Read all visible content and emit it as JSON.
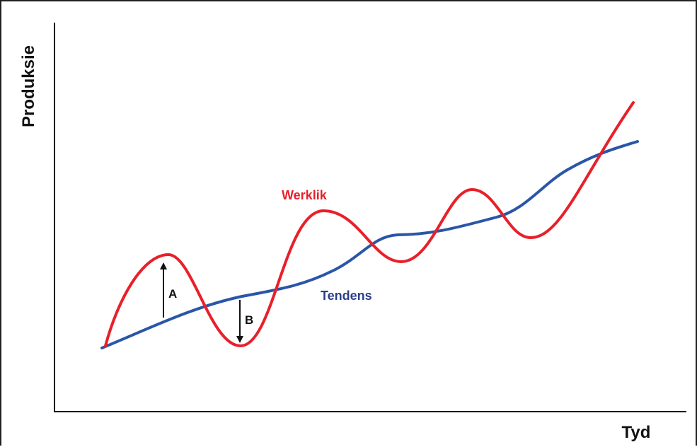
{
  "chart_data": {
    "type": "line",
    "title": "",
    "xlabel": "Tyd",
    "ylabel": "Produksie",
    "grid": false,
    "series": [
      {
        "name": "Werklik",
        "color": "#e8202a"
      },
      {
        "name": "Tendens",
        "color": "#2a56a8"
      }
    ],
    "annotations": [
      {
        "label": "A",
        "direction": "up"
      },
      {
        "label": "B",
        "direction": "down"
      }
    ]
  },
  "colors": {
    "actual_line": "#e8202a",
    "trend_line": "#2a56a8",
    "actual_label": "#e8202a",
    "trend_label": "#2a3f8c",
    "axis": "#111111"
  }
}
